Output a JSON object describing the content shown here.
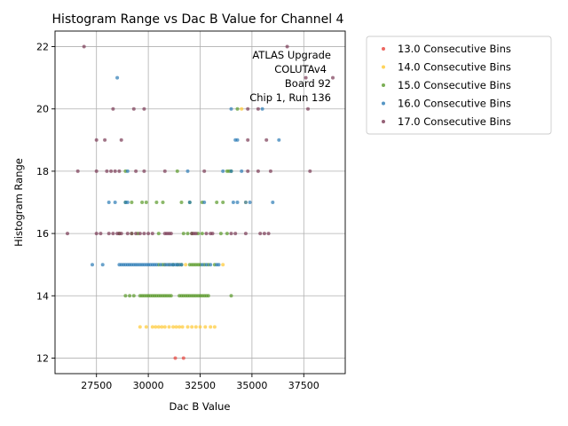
{
  "chart_data": {
    "type": "scatter",
    "title": "Histogram Range vs Dac B Value for Channel 4",
    "xlabel": "Dac B Value",
    "ylabel": "Histogram Range",
    "xlim": [
      25500,
      39500
    ],
    "ylim": [
      11.5,
      22.5
    ],
    "xticks": [
      27500,
      30000,
      32500,
      35000,
      37500
    ],
    "xtick_labels": [
      "27500",
      "30000",
      "32500",
      "35000",
      "37500"
    ],
    "yticks": [
      12,
      14,
      16,
      18,
      20,
      22
    ],
    "ytick_labels": [
      "12",
      "14",
      "16",
      "18",
      "20",
      "22"
    ],
    "grid": true,
    "legend_position": "outside-upper-right",
    "annotation": [
      "ATLAS Upgrade",
      "COLUTAv4",
      "Board 92",
      "Chip 1, Run 136"
    ],
    "series": [
      {
        "name": "13.0 Consecutive Bins",
        "color": "#e8413a",
        "points": [
          [
            31300,
            12
          ],
          [
            31700,
            12
          ]
        ]
      },
      {
        "name": "14.0 Consecutive Bins",
        "color": "#ffc933",
        "points": [
          [
            29600,
            13
          ],
          [
            29900,
            13
          ],
          [
            30200,
            13
          ],
          [
            30350,
            13
          ],
          [
            30500,
            13
          ],
          [
            30650,
            13
          ],
          [
            30800,
            13
          ],
          [
            31000,
            13
          ],
          [
            31200,
            13
          ],
          [
            31350,
            13
          ],
          [
            31500,
            13
          ],
          [
            31650,
            13
          ],
          [
            31900,
            13
          ],
          [
            32100,
            13
          ],
          [
            32300,
            13
          ],
          [
            32500,
            13
          ],
          [
            32750,
            13
          ],
          [
            33000,
            13
          ],
          [
            33200,
            13
          ],
          [
            30800,
            15
          ],
          [
            31000,
            15
          ],
          [
            31500,
            15
          ],
          [
            31800,
            15
          ],
          [
            33600,
            15
          ],
          [
            34700,
            17
          ],
          [
            34500,
            20
          ]
        ]
      },
      {
        "name": "15.0 Consecutive Bins",
        "color": "#5a9a2a",
        "points": [
          [
            28900,
            14
          ],
          [
            29100,
            14
          ],
          [
            29300,
            14
          ],
          [
            29600,
            14
          ],
          [
            29700,
            14
          ],
          [
            29800,
            14
          ],
          [
            29900,
            14
          ],
          [
            30000,
            14
          ],
          [
            30100,
            14
          ],
          [
            30200,
            14
          ],
          [
            30300,
            14
          ],
          [
            30400,
            14
          ],
          [
            30500,
            14
          ],
          [
            30600,
            14
          ],
          [
            30700,
            14
          ],
          [
            30800,
            14
          ],
          [
            30900,
            14
          ],
          [
            31000,
            14
          ],
          [
            31100,
            14
          ],
          [
            31500,
            14
          ],
          [
            31600,
            14
          ],
          [
            31700,
            14
          ],
          [
            31800,
            14
          ],
          [
            31900,
            14
          ],
          [
            32000,
            14
          ],
          [
            32100,
            14
          ],
          [
            32200,
            14
          ],
          [
            32300,
            14
          ],
          [
            32400,
            14
          ],
          [
            32500,
            14
          ],
          [
            32600,
            14
          ],
          [
            32700,
            14
          ],
          [
            32800,
            14
          ],
          [
            32900,
            14
          ],
          [
            34000,
            14
          ],
          [
            30500,
            15
          ],
          [
            30700,
            15
          ],
          [
            31200,
            15
          ],
          [
            31400,
            15
          ],
          [
            31600,
            15
          ],
          [
            32000,
            15
          ],
          [
            32100,
            15
          ],
          [
            32200,
            15
          ],
          [
            32300,
            15
          ],
          [
            32400,
            15
          ],
          [
            32500,
            15
          ],
          [
            32700,
            15
          ],
          [
            32900,
            15
          ],
          [
            33200,
            15
          ],
          [
            28600,
            16
          ],
          [
            29200,
            16
          ],
          [
            29500,
            16
          ],
          [
            30500,
            16
          ],
          [
            31700,
            16
          ],
          [
            31900,
            16
          ],
          [
            32100,
            16
          ],
          [
            32400,
            16
          ],
          [
            32600,
            16
          ],
          [
            33500,
            16
          ],
          [
            33800,
            16
          ],
          [
            28900,
            17
          ],
          [
            29200,
            17
          ],
          [
            29700,
            17
          ],
          [
            29900,
            17
          ],
          [
            30400,
            17
          ],
          [
            30700,
            17
          ],
          [
            31600,
            17
          ],
          [
            32000,
            17
          ],
          [
            32600,
            17
          ],
          [
            33300,
            17
          ],
          [
            33600,
            17
          ],
          [
            28900,
            18
          ],
          [
            31400,
            18
          ],
          [
            33800,
            18
          ],
          [
            33900,
            18
          ],
          [
            34000,
            18
          ],
          [
            34300,
            20
          ]
        ]
      },
      {
        "name": "16.0 Consecutive Bins",
        "color": "#2b7bb5",
        "points": [
          [
            27300,
            15
          ],
          [
            27800,
            15
          ],
          [
            28600,
            15
          ],
          [
            28700,
            15
          ],
          [
            28800,
            15
          ],
          [
            28900,
            15
          ],
          [
            29000,
            15
          ],
          [
            29100,
            15
          ],
          [
            29200,
            15
          ],
          [
            29300,
            15
          ],
          [
            29400,
            15
          ],
          [
            29500,
            15
          ],
          [
            29600,
            15
          ],
          [
            29700,
            15
          ],
          [
            29800,
            15
          ],
          [
            29900,
            15
          ],
          [
            30000,
            15
          ],
          [
            30100,
            15
          ],
          [
            30200,
            15
          ],
          [
            30300,
            15
          ],
          [
            30400,
            15
          ],
          [
            30600,
            15
          ],
          [
            30800,
            15
          ],
          [
            30900,
            15
          ],
          [
            31000,
            15
          ],
          [
            31100,
            15
          ],
          [
            31200,
            15
          ],
          [
            31300,
            15
          ],
          [
            31400,
            15
          ],
          [
            31500,
            15
          ],
          [
            31600,
            15
          ],
          [
            32600,
            15
          ],
          [
            32800,
            15
          ],
          [
            33000,
            15
          ],
          [
            33300,
            15
          ],
          [
            33400,
            15
          ],
          [
            28100,
            17
          ],
          [
            28400,
            17
          ],
          [
            28900,
            17
          ],
          [
            29000,
            17
          ],
          [
            32000,
            17
          ],
          [
            32700,
            17
          ],
          [
            34100,
            17
          ],
          [
            34300,
            17
          ],
          [
            34700,
            17
          ],
          [
            34900,
            17
          ],
          [
            36000,
            17
          ],
          [
            29000,
            18
          ],
          [
            31900,
            18
          ],
          [
            33600,
            18
          ],
          [
            34000,
            18
          ],
          [
            34500,
            18
          ],
          [
            34200,
            19
          ],
          [
            34300,
            19
          ],
          [
            36300,
            19
          ],
          [
            34000,
            20
          ],
          [
            35500,
            20
          ],
          [
            28500,
            21
          ]
        ]
      },
      {
        "name": "17.0 Consecutive Bins",
        "color": "#7a3a55",
        "points": [
          [
            26100,
            16
          ],
          [
            27500,
            16
          ],
          [
            27700,
            16
          ],
          [
            28100,
            16
          ],
          [
            28300,
            16
          ],
          [
            28500,
            16
          ],
          [
            28600,
            16
          ],
          [
            28700,
            16
          ],
          [
            29000,
            16
          ],
          [
            29200,
            16
          ],
          [
            29400,
            16
          ],
          [
            29600,
            16
          ],
          [
            29800,
            16
          ],
          [
            30000,
            16
          ],
          [
            30200,
            16
          ],
          [
            30800,
            16
          ],
          [
            30900,
            16
          ],
          [
            31000,
            16
          ],
          [
            31100,
            16
          ],
          [
            32100,
            16
          ],
          [
            32200,
            16
          ],
          [
            32300,
            16
          ],
          [
            32800,
            16
          ],
          [
            33000,
            16
          ],
          [
            33100,
            16
          ],
          [
            34000,
            16
          ],
          [
            34200,
            16
          ],
          [
            34700,
            16
          ],
          [
            35400,
            16
          ],
          [
            35600,
            16
          ],
          [
            35800,
            16
          ],
          [
            26600,
            18
          ],
          [
            27500,
            18
          ],
          [
            28000,
            18
          ],
          [
            28200,
            18
          ],
          [
            28400,
            18
          ],
          [
            28600,
            18
          ],
          [
            29400,
            18
          ],
          [
            29800,
            18
          ],
          [
            30800,
            18
          ],
          [
            32700,
            18
          ],
          [
            34800,
            18
          ],
          [
            35300,
            18
          ],
          [
            35900,
            18
          ],
          [
            37800,
            18
          ],
          [
            27500,
            19
          ],
          [
            27900,
            19
          ],
          [
            28700,
            19
          ],
          [
            34800,
            19
          ],
          [
            35700,
            19
          ],
          [
            28300,
            20
          ],
          [
            29300,
            20
          ],
          [
            29800,
            20
          ],
          [
            34800,
            20
          ],
          [
            35300,
            20
          ],
          [
            37700,
            20
          ],
          [
            37600,
            21
          ],
          [
            38900,
            21
          ],
          [
            26900,
            22
          ],
          [
            36700,
            22
          ]
        ]
      }
    ]
  }
}
